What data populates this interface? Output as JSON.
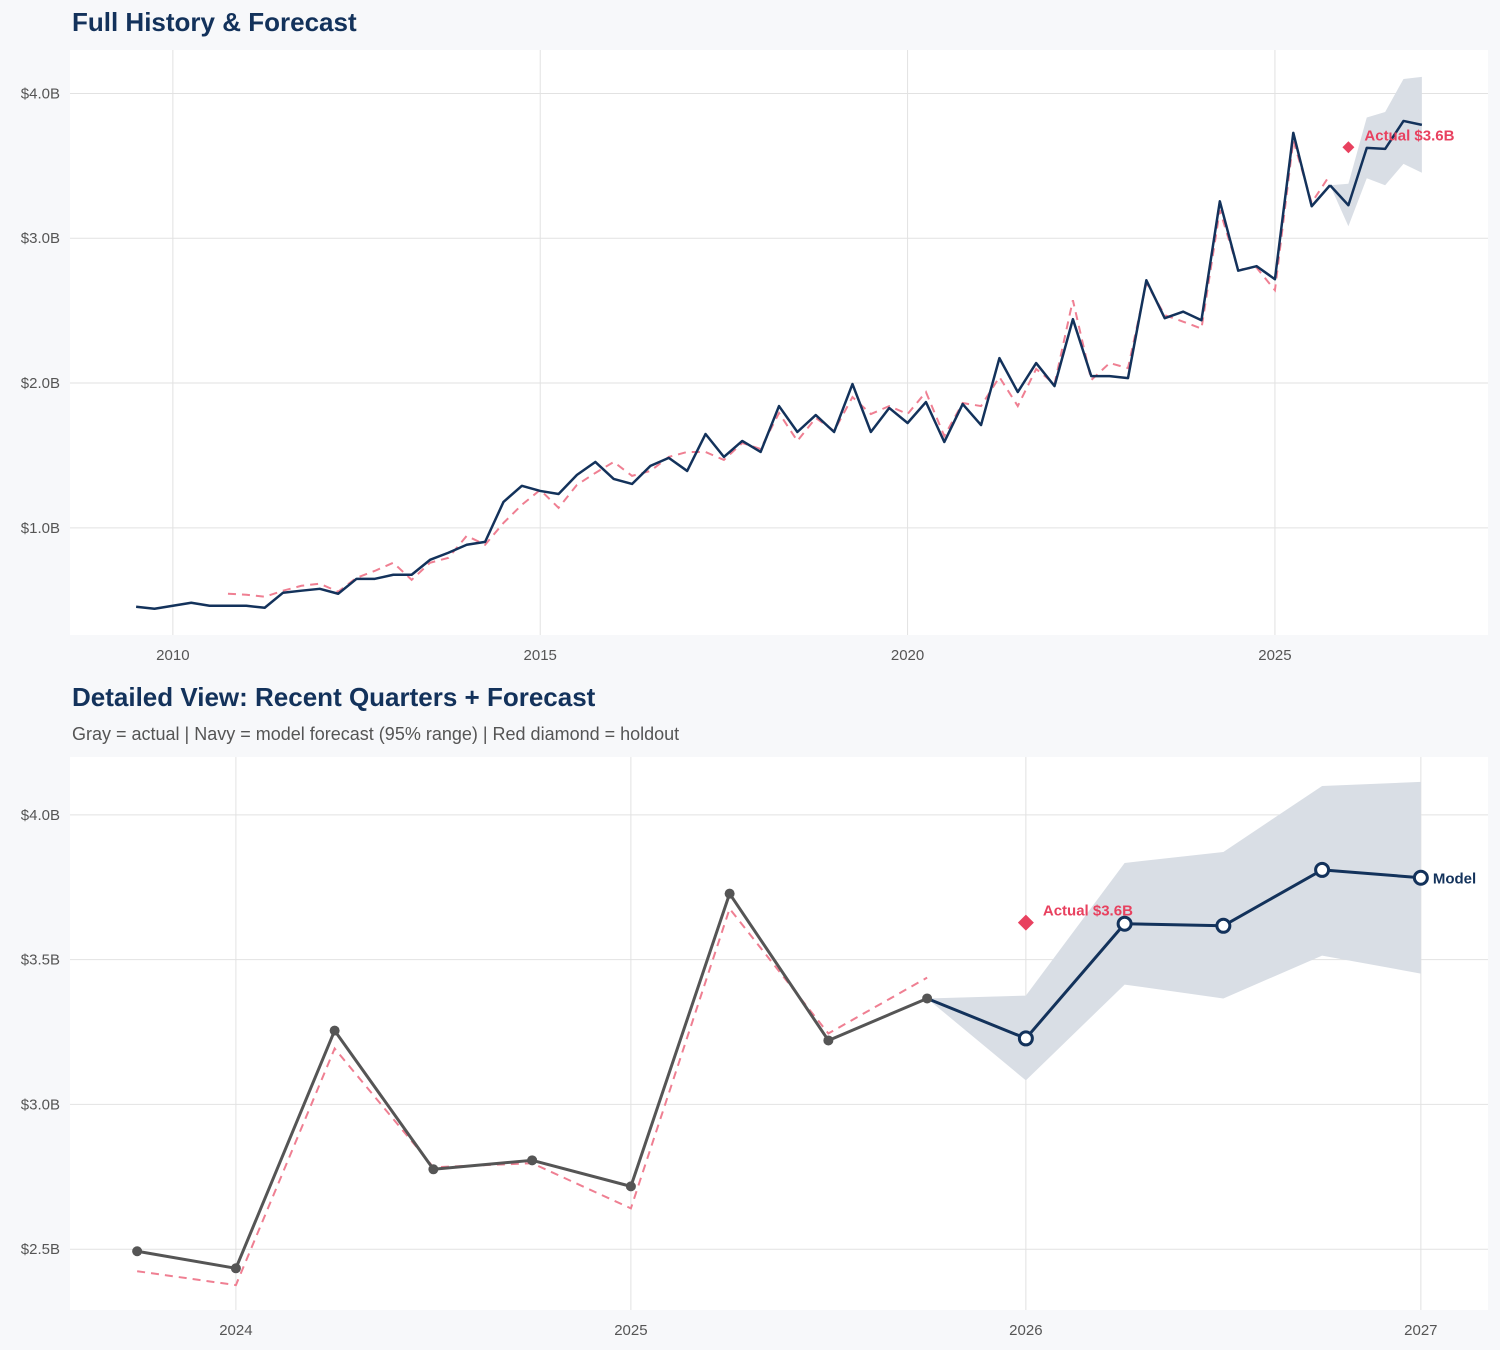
{
  "colors": {
    "actual_top": "#13325b",
    "actual_detail": "#555555",
    "forecast": "#13325b",
    "fitted": "#ef7f92",
    "band": "#d9dee5",
    "holdout": "#e8415f",
    "title": "#13325b"
  },
  "chart_data": [
    {
      "type": "line",
      "title": "Full History & Forecast",
      "xlim": [
        2008.6,
        2027.9
      ],
      "ylim": [
        0.26,
        4.3
      ],
      "x_ticks": [
        2010,
        2015,
        2020,
        2025
      ],
      "x_tick_labels": [
        "2010",
        "2015",
        "2020",
        "2025"
      ],
      "y_ticks": [
        1.0,
        2.0,
        3.0,
        4.0
      ],
      "y_tick_labels": [
        "$1.0B",
        "$2.0B",
        "$3.0B",
        "$4.0B"
      ],
      "grid": true,
      "actual": {
        "x_start": 2009.5,
        "step": 0.25,
        "values": [
          0.455,
          0.441,
          0.462,
          0.483,
          0.462,
          0.462,
          0.462,
          0.448,
          0.552,
          0.566,
          0.579,
          0.545,
          0.648,
          0.648,
          0.676,
          0.676,
          0.779,
          0.828,
          0.883,
          0.903,
          1.179,
          1.29,
          1.255,
          1.234,
          1.366,
          1.455,
          1.338,
          1.303,
          1.428,
          1.483,
          1.393,
          1.648,
          1.49,
          1.6,
          1.524,
          1.841,
          1.662,
          1.779,
          1.662,
          1.993,
          1.662,
          1.828,
          1.724,
          1.869,
          1.593,
          1.855,
          1.71,
          2.172,
          1.938,
          2.138,
          1.979,
          2.441,
          2.048,
          2.048,
          2.034,
          2.71,
          2.448,
          2.493,
          2.434,
          3.255,
          2.776,
          2.807,
          2.717,
          3.728,
          3.221,
          3.366
        ]
      },
      "fitted": {
        "x_start": 2010.75,
        "step": 0.25,
        "values": [
          0.545,
          0.538,
          0.524,
          0.566,
          0.6,
          0.614,
          0.559,
          0.655,
          0.703,
          0.759,
          0.641,
          0.759,
          0.793,
          0.945,
          0.883,
          1.034,
          1.159,
          1.262,
          1.138,
          1.297,
          1.379,
          1.455,
          1.359,
          1.393,
          1.49,
          1.524,
          1.524,
          1.469,
          1.586,
          1.545,
          1.793,
          1.6,
          1.759,
          1.669,
          1.903,
          1.786,
          1.841,
          1.786,
          1.938,
          1.634,
          1.862,
          1.841,
          2.041,
          1.841,
          2.097,
          1.993,
          2.572,
          2.021,
          2.138,
          2.103,
          2.69,
          2.469,
          2.424,
          2.376,
          3.193,
          2.783,
          2.797,
          2.641,
          3.676,
          3.245,
          3.438
        ]
      },
      "forecast": {
        "x": [
          2025.75,
          2026.0,
          2026.25,
          2026.5,
          2026.75,
          2027.0
        ],
        "values": [
          3.366,
          3.228,
          3.624,
          3.617,
          3.81,
          3.783
        ],
        "lower": [
          3.366,
          3.083,
          3.414,
          3.366,
          3.514,
          3.452
        ],
        "upper": [
          3.366,
          3.376,
          3.834,
          3.872,
          4.1,
          4.114
        ]
      },
      "holdout": {
        "x": 2026.0,
        "value": 3.628,
        "label": "Actual $3.6B"
      }
    },
    {
      "type": "line",
      "title": "Detailed View: Recent Quarters + Forecast",
      "subtitle": "Gray = actual  |  Navy = model forecast (95% range)  |  Red diamond = holdout",
      "xlim": [
        2023.58,
        2027.17
      ],
      "ylim": [
        2.29,
        4.2
      ],
      "x_ticks": [
        2024,
        2025,
        2026,
        2027
      ],
      "x_tick_labels": [
        "2024",
        "2025",
        "2026",
        "2027"
      ],
      "y_ticks": [
        2.5,
        3.0,
        3.5,
        4.0
      ],
      "y_tick_labels": [
        "$2.5B",
        "$3.0B",
        "$3.5B",
        "$4.0B"
      ],
      "grid": true,
      "actual": {
        "x_start": 2023.75,
        "step": 0.25,
        "values": [
          2.493,
          2.434,
          3.255,
          2.776,
          2.807,
          2.717,
          3.728,
          3.221,
          3.366
        ]
      },
      "fitted": {
        "x_start": 2023.75,
        "step": 0.25,
        "values": [
          2.424,
          2.376,
          3.193,
          2.783,
          2.797,
          2.641,
          3.676,
          3.245,
          3.438
        ]
      },
      "forecast": {
        "x": [
          2025.75,
          2026.0,
          2026.25,
          2026.5,
          2026.75,
          2027.0
        ],
        "values": [
          3.366,
          3.228,
          3.624,
          3.617,
          3.81,
          3.783
        ],
        "lower": [
          3.366,
          3.083,
          3.414,
          3.366,
          3.514,
          3.452
        ],
        "upper": [
          3.366,
          3.376,
          3.834,
          3.872,
          4.1,
          4.114
        ],
        "label": "Model"
      },
      "holdout": {
        "x": 2026.0,
        "value": 3.628,
        "label": "Actual $3.6B"
      }
    }
  ]
}
